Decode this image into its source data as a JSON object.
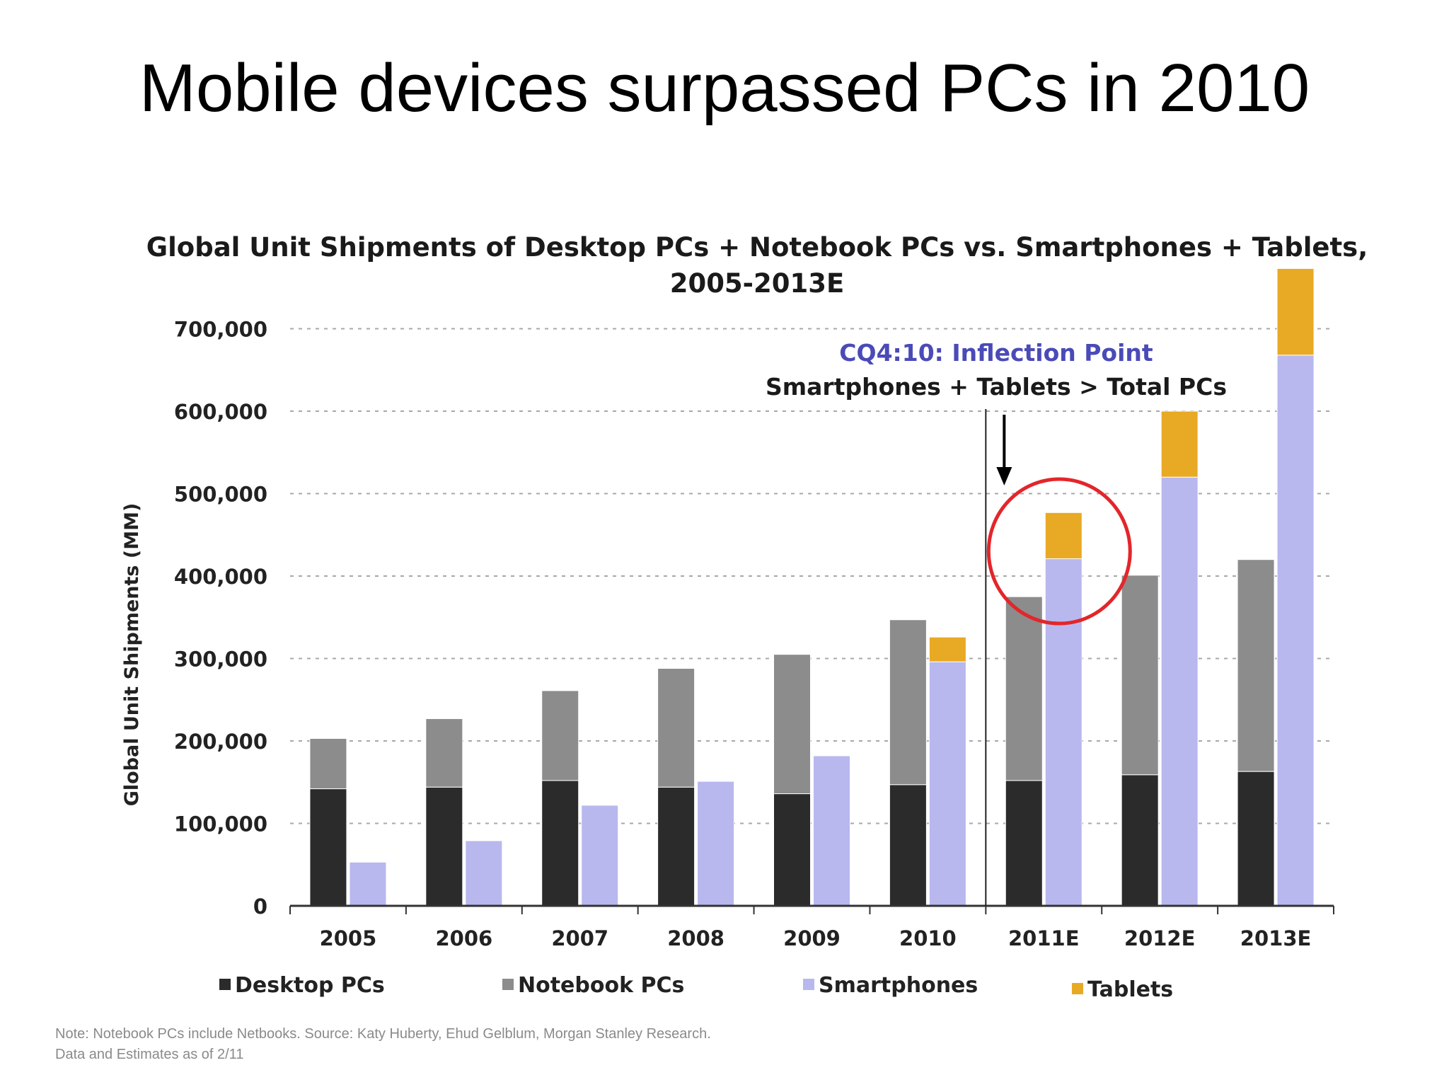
{
  "slide": {
    "title": "Mobile devices surpassed PCs in 2010"
  },
  "chart_data": {
    "type": "bar",
    "layout": "grouped-stacked",
    "title": "Global Unit Shipments of Desktop PCs + Notebook PCs vs. Smartphones + Tablets,",
    "subtitle": "2005-2013E",
    "xlabel": "",
    "ylabel": "Global Unit Shipments (MM)",
    "ylim": [
      0,
      700000
    ],
    "yticks": [
      "0",
      "100,000",
      "200,000",
      "300,000",
      "400,000",
      "500,000",
      "600,000",
      "700,000"
    ],
    "ytick_values": [
      0,
      100000,
      200000,
      300000,
      400000,
      500000,
      600000,
      700000
    ],
    "grid": true,
    "legend_position": "bottom",
    "categories": [
      "2005",
      "2006",
      "2007",
      "2008",
      "2009",
      "2010",
      "2011E",
      "2012E",
      "2013E"
    ],
    "series": [
      {
        "name": "Desktop PCs",
        "stack": "pc",
        "color": "#2b2b2b",
        "values": [
          142000,
          144000,
          152000,
          144000,
          136000,
          147000,
          152000,
          159000,
          163000
        ]
      },
      {
        "name": "Notebook PCs",
        "stack": "pc",
        "color": "#8c8c8c",
        "values": [
          61000,
          83000,
          109000,
          144000,
          169000,
          200000,
          223000,
          242000,
          257000
        ]
      },
      {
        "name": "Smartphones",
        "stack": "mobile",
        "color": "#b8b8ee",
        "values": [
          53000,
          79000,
          122000,
          151000,
          182000,
          296000,
          421000,
          520000,
          668000
        ]
      },
      {
        "name": "Tablets",
        "stack": "mobile",
        "color": "#e8a924",
        "values": [
          0,
          0,
          0,
          0,
          0,
          30000,
          56000,
          80000,
          105000
        ]
      }
    ],
    "annotations": {
      "line1": "CQ4:10: Inflection Point",
      "line2": "Smartphones + Tablets > Total PCs"
    },
    "note": {
      "line1": "Note: Notebook PCs include Netbooks. Source: Katy Huberty, Ehud Gelblum, Morgan Stanley Research.",
      "line2": "Data and Estimates as of 2/11"
    }
  }
}
